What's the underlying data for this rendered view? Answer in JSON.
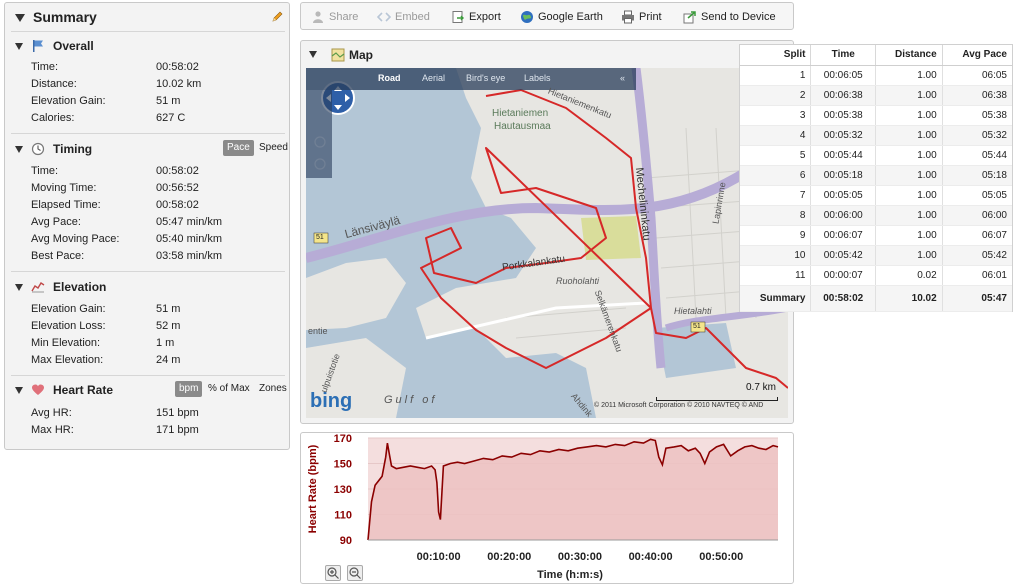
{
  "summary": {
    "title": "Summary",
    "overall": {
      "title": "Overall",
      "rows": [
        {
          "label": "Time:",
          "value": "00:58:02"
        },
        {
          "label": "Distance:",
          "value": "10.02 km"
        },
        {
          "label": "Elevation Gain:",
          "value": "51 m"
        },
        {
          "label": "Calories:",
          "value": "627 C"
        }
      ]
    },
    "timing": {
      "title": "Timing",
      "toggle": [
        "Pace",
        "Speed"
      ],
      "rows": [
        {
          "label": "Time:",
          "value": "00:58:02"
        },
        {
          "label": "Moving Time:",
          "value": "00:56:52"
        },
        {
          "label": "Elapsed Time:",
          "value": "00:58:02"
        },
        {
          "label": "Avg Pace:",
          "value": "05:47 min/km"
        },
        {
          "label": "Avg Moving Pace:",
          "value": "05:40 min/km"
        },
        {
          "label": "Best Pace:",
          "value": "03:58 min/km"
        }
      ]
    },
    "elevation": {
      "title": "Elevation",
      "rows": [
        {
          "label": "Elevation Gain:",
          "value": "51 m"
        },
        {
          "label": "Elevation Loss:",
          "value": "52 m"
        },
        {
          "label": "Min Elevation:",
          "value": "1 m"
        },
        {
          "label": "Max Elevation:",
          "value": "24 m"
        }
      ]
    },
    "heart_rate": {
      "title": "Heart Rate",
      "toggle": [
        "bpm",
        "% of Max",
        "Zones"
      ],
      "rows": [
        {
          "label": "Avg HR:",
          "value": "151 bpm"
        },
        {
          "label": "Max HR:",
          "value": "171 bpm"
        }
      ]
    }
  },
  "toolbar": {
    "share": "Share",
    "embed": "Embed",
    "export": "Export",
    "google_earth": "Google Earth",
    "print": "Print",
    "send_to_device": "Send to Device"
  },
  "map": {
    "title": "Map",
    "tabs": [
      "Road",
      "Aerial",
      "Bird's eye",
      "Labels"
    ],
    "labels": {
      "hietaniemen": "Hietaniemen",
      "hautausmaa": "Hautausmaa",
      "hietaniemenkatu": "Hietaniemenkatu",
      "lansivayla": "Länsiväylä",
      "porkkalankatu": "Porkkalankatu",
      "mechelininkatu": "Mechelininkatu",
      "ruoholahti": "Ruoholahti",
      "hietalahti": "Hietalahti",
      "selkamerenkatu": "Selkämerenkatu",
      "lapinrinne": "Lapinrinne",
      "gulf": "Gulf of",
      "road51": "51",
      "road51b": "51",
      "entie": "entie",
      "puistotie": "ulpuistotie",
      "ahdink": "Ahdink"
    },
    "bing": "bing",
    "copyright": "© 2011 Microsoft Corporation  © 2010 NAVTEQ  © AND",
    "scale": "0.7 km"
  },
  "splits": {
    "headers": [
      "Split",
      "Time",
      "Distance",
      "Avg Pace"
    ],
    "rows": [
      [
        "1",
        "00:06:05",
        "1.00",
        "06:05"
      ],
      [
        "2",
        "00:06:38",
        "1.00",
        "06:38"
      ],
      [
        "3",
        "00:05:38",
        "1.00",
        "05:38"
      ],
      [
        "4",
        "00:05:32",
        "1.00",
        "05:32"
      ],
      [
        "5",
        "00:05:44",
        "1.00",
        "05:44"
      ],
      [
        "6",
        "00:05:18",
        "1.00",
        "05:18"
      ],
      [
        "7",
        "00:05:05",
        "1.00",
        "05:05"
      ],
      [
        "8",
        "00:06:00",
        "1.00",
        "06:00"
      ],
      [
        "9",
        "00:06:07",
        "1.00",
        "06:07"
      ],
      [
        "10",
        "00:05:42",
        "1.00",
        "05:42"
      ],
      [
        "11",
        "00:00:07",
        "0.02",
        "06:01"
      ]
    ],
    "summary": [
      "Summary",
      "00:58:02",
      "10.02",
      "05:47"
    ]
  },
  "colors": {
    "route": "#d62828",
    "hr_line": "#8b0000",
    "hr_fill": "#ecc2c2",
    "water": "#b3c6d6",
    "land": "#e7e6e2",
    "park": "#d9dd9b",
    "highway": "#b7acd6",
    "map_panel_bg": "#f3f3f3"
  },
  "chart_data": {
    "type": "area",
    "title": "",
    "xlabel": "Time (h:m:s)",
    "ylabel": "Heart Rate (bpm)",
    "ylim": [
      90,
      170
    ],
    "yticks": [
      "90",
      "110",
      "130",
      "150",
      "170"
    ],
    "xticks": [
      "00:10:00",
      "00:20:00",
      "00:30:00",
      "00:40:00",
      "00:50:00"
    ],
    "xtick_values_s": [
      600,
      1200,
      1800,
      2400,
      3000
    ],
    "xlim_s": [
      0,
      3482
    ],
    "series": [
      {
        "x_s": [
          0,
          30,
          60,
          120,
          150,
          165,
          180,
          200,
          240,
          300,
          360,
          420,
          480,
          540,
          570,
          585,
          600,
          615,
          640,
          700,
          760,
          820,
          900,
          980,
          1060,
          1140,
          1220,
          1300,
          1380,
          1460,
          1540,
          1620,
          1700,
          1780,
          1860,
          1940,
          2020,
          2100,
          2180,
          2260,
          2340,
          2400,
          2440,
          2470,
          2500,
          2530,
          2600,
          2660,
          2720,
          2780,
          2820,
          2860,
          2900,
          2960,
          3020,
          3080,
          3140,
          3200,
          3260,
          3320,
          3380,
          3440,
          3482
        ],
        "values": [
          90,
          120,
          133,
          140,
          155,
          166,
          158,
          148,
          146,
          147,
          148,
          147,
          146,
          148,
          145,
          135,
          112,
          106,
          148,
          150,
          151,
          150,
          152,
          154,
          153,
          156,
          155,
          158,
          157,
          160,
          159,
          161,
          160,
          162,
          163,
          164,
          163,
          165,
          164,
          167,
          166,
          169,
          168,
          155,
          149,
          162,
          163,
          164,
          160,
          162,
          158,
          150,
          159,
          163,
          165,
          156,
          160,
          163,
          164,
          162,
          161,
          164,
          163
        ]
      }
    ]
  }
}
